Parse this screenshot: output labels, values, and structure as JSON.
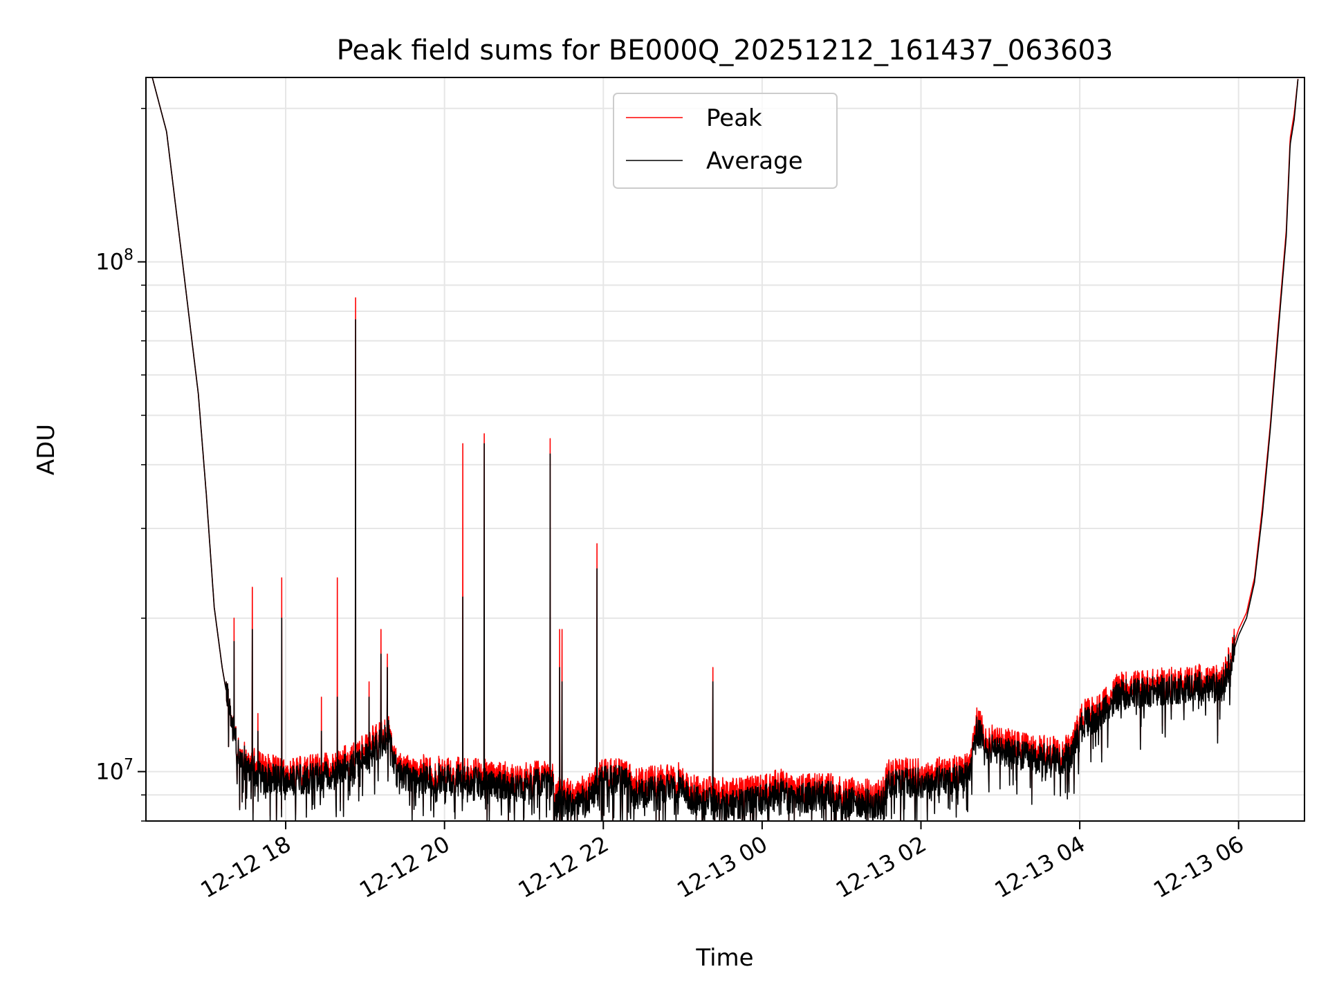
{
  "chart_data": {
    "type": "line",
    "title": "Peak field sums for BE000Q_20251212_161437_063603",
    "xlabel": "Time",
    "ylabel": "ADU",
    "yscale": "log",
    "ylim": [
      8000000,
      230000000
    ],
    "xlim_hours": [
      16.24,
      30.83
    ],
    "x_unit": "hours since 2025-12-12 00:00",
    "grid": true,
    "legend_position": "top-center",
    "x_ticks": [
      {
        "value": 18,
        "label": "12-12 18"
      },
      {
        "value": 20,
        "label": "12-12 20"
      },
      {
        "value": 22,
        "label": "12-12 22"
      },
      {
        "value": 24,
        "label": "12-13 00"
      },
      {
        "value": 26,
        "label": "12-13 02"
      },
      {
        "value": 28,
        "label": "12-13 04"
      },
      {
        "value": 30,
        "label": "12-13 06"
      }
    ],
    "y_major_ticks": [
      {
        "value": 10000000,
        "base": "10",
        "exp": "7"
      },
      {
        "value": 100000000,
        "base": "10",
        "exp": "8"
      }
    ],
    "series": [
      {
        "name": "Peak",
        "color": "#ff0000",
        "baseline": [
          [
            16.32,
            230000000
          ],
          [
            16.5,
            180000000
          ],
          [
            16.7,
            100000000
          ],
          [
            16.9,
            55000000
          ],
          [
            17.0,
            35000000
          ],
          [
            17.1,
            21000000
          ],
          [
            17.2,
            16000000
          ],
          [
            17.3,
            13000000
          ],
          [
            17.4,
            11000000
          ],
          [
            17.5,
            10600000
          ],
          [
            17.7,
            10200000
          ],
          [
            18.0,
            9900000
          ],
          [
            18.3,
            10100000
          ],
          [
            18.6,
            10300000
          ],
          [
            18.9,
            10800000
          ],
          [
            19.1,
            11500000
          ],
          [
            19.3,
            12000000
          ],
          [
            19.4,
            10200000
          ],
          [
            19.7,
            10100000
          ],
          [
            20.0,
            10000000
          ],
          [
            20.5,
            9900000
          ],
          [
            21.0,
            9800000
          ],
          [
            21.35,
            9800000
          ],
          [
            21.4,
            9100000
          ],
          [
            21.8,
            9200000
          ],
          [
            22.0,
            9900000
          ],
          [
            22.3,
            9900000
          ],
          [
            22.4,
            9500000
          ],
          [
            22.9,
            9700000
          ],
          [
            23.0,
            9800000
          ],
          [
            23.1,
            9200000
          ],
          [
            23.6,
            9100000
          ],
          [
            24.0,
            9200000
          ],
          [
            24.2,
            9500000
          ],
          [
            24.4,
            9200000
          ],
          [
            24.8,
            9300000
          ],
          [
            25.1,
            9100000
          ],
          [
            25.5,
            9000000
          ],
          [
            25.6,
            10000000
          ],
          [
            26.0,
            9900000
          ],
          [
            26.3,
            10000000
          ],
          [
            26.6,
            10200000
          ],
          [
            26.7,
            12500000
          ],
          [
            26.9,
            11500000
          ],
          [
            27.1,
            11400000
          ],
          [
            27.4,
            11000000
          ],
          [
            27.9,
            11000000
          ],
          [
            28.0,
            12800000
          ],
          [
            28.3,
            13500000
          ],
          [
            28.5,
            14700000
          ],
          [
            28.8,
            14800000
          ],
          [
            29.2,
            15000000
          ],
          [
            29.5,
            15200000
          ],
          [
            29.8,
            15100000
          ],
          [
            29.9,
            17000000
          ],
          [
            30.0,
            19000000
          ],
          [
            30.1,
            20500000
          ],
          [
            30.2,
            24000000
          ],
          [
            30.3,
            33000000
          ],
          [
            30.4,
            48000000
          ],
          [
            30.5,
            75000000
          ],
          [
            30.6,
            115000000
          ],
          [
            30.65,
            175000000
          ],
          [
            30.7,
            195000000
          ],
          [
            30.75,
            230000000
          ]
        ],
        "spikes": [
          [
            17.35,
            20000000
          ],
          [
            17.58,
            23000000
          ],
          [
            17.65,
            13000000
          ],
          [
            17.95,
            24000000
          ],
          [
            18.45,
            14000000
          ],
          [
            18.65,
            24000000
          ],
          [
            18.88,
            85000000
          ],
          [
            19.05,
            15000000
          ],
          [
            19.2,
            19000000
          ],
          [
            19.28,
            17000000
          ],
          [
            20.23,
            44000000
          ],
          [
            20.5,
            46000000
          ],
          [
            21.33,
            45000000
          ],
          [
            21.45,
            19000000
          ],
          [
            21.48,
            19000000
          ],
          [
            21.92,
            28000000
          ],
          [
            23.38,
            16000000
          ]
        ]
      },
      {
        "name": "Average",
        "color": "#000000",
        "baseline": [
          [
            16.32,
            230000000
          ],
          [
            16.5,
            180000000
          ],
          [
            16.7,
            100000000
          ],
          [
            16.9,
            55000000
          ],
          [
            17.0,
            35000000
          ],
          [
            17.1,
            21000000
          ],
          [
            17.2,
            16000000
          ],
          [
            17.3,
            13000000
          ],
          [
            17.4,
            10900000
          ],
          [
            17.5,
            10400000
          ],
          [
            17.7,
            9700000
          ],
          [
            18.0,
            9600000
          ],
          [
            18.3,
            9700000
          ],
          [
            18.6,
            9900000
          ],
          [
            18.9,
            10400000
          ],
          [
            19.1,
            11000000
          ],
          [
            19.3,
            11800000
          ],
          [
            19.4,
            9900000
          ],
          [
            19.7,
            9700000
          ],
          [
            20.0,
            9700000
          ],
          [
            20.5,
            9500000
          ],
          [
            21.0,
            9400000
          ],
          [
            21.35,
            9500000
          ],
          [
            21.4,
            8700000
          ],
          [
            21.8,
            8800000
          ],
          [
            22.0,
            9600000
          ],
          [
            22.3,
            9600000
          ],
          [
            22.4,
            9000000
          ],
          [
            22.9,
            9300000
          ],
          [
            23.0,
            9500000
          ],
          [
            23.1,
            8800000
          ],
          [
            23.6,
            8600000
          ],
          [
            24.0,
            8800000
          ],
          [
            24.2,
            9100000
          ],
          [
            24.4,
            8800000
          ],
          [
            24.8,
            9000000
          ],
          [
            25.1,
            8700000
          ],
          [
            25.5,
            8600000
          ],
          [
            25.6,
            9500000
          ],
          [
            26.0,
            9500000
          ],
          [
            26.3,
            9600000
          ],
          [
            26.6,
            9800000
          ],
          [
            26.7,
            12000000
          ],
          [
            26.9,
            11000000
          ],
          [
            27.1,
            10900000
          ],
          [
            27.4,
            10600000
          ],
          [
            27.9,
            10600000
          ],
          [
            28.0,
            12300000
          ],
          [
            28.3,
            13000000
          ],
          [
            28.5,
            14200000
          ],
          [
            28.8,
            14300000
          ],
          [
            29.2,
            14500000
          ],
          [
            29.5,
            14700000
          ],
          [
            29.8,
            14600000
          ],
          [
            29.9,
            16500000
          ],
          [
            30.0,
            18500000
          ],
          [
            30.1,
            20000000
          ],
          [
            30.2,
            23500000
          ],
          [
            30.3,
            32000000
          ],
          [
            30.4,
            47000000
          ],
          [
            30.5,
            73000000
          ],
          [
            30.6,
            112000000
          ],
          [
            30.65,
            170000000
          ],
          [
            30.7,
            190000000
          ],
          [
            30.75,
            230000000
          ]
        ],
        "spikes": [
          [
            17.35,
            18000000
          ],
          [
            17.58,
            19000000
          ],
          [
            17.65,
            12000000
          ],
          [
            17.95,
            20000000
          ],
          [
            18.45,
            12000000
          ],
          [
            18.65,
            14000000
          ],
          [
            18.88,
            77000000
          ],
          [
            19.05,
            14000000
          ],
          [
            19.2,
            17000000
          ],
          [
            19.28,
            16000000
          ],
          [
            20.23,
            22000000
          ],
          [
            20.5,
            44000000
          ],
          [
            21.33,
            42000000
          ],
          [
            21.45,
            16000000
          ],
          [
            21.48,
            15000000
          ],
          [
            21.92,
            25000000
          ],
          [
            23.38,
            15000000
          ]
        ]
      }
    ]
  }
}
